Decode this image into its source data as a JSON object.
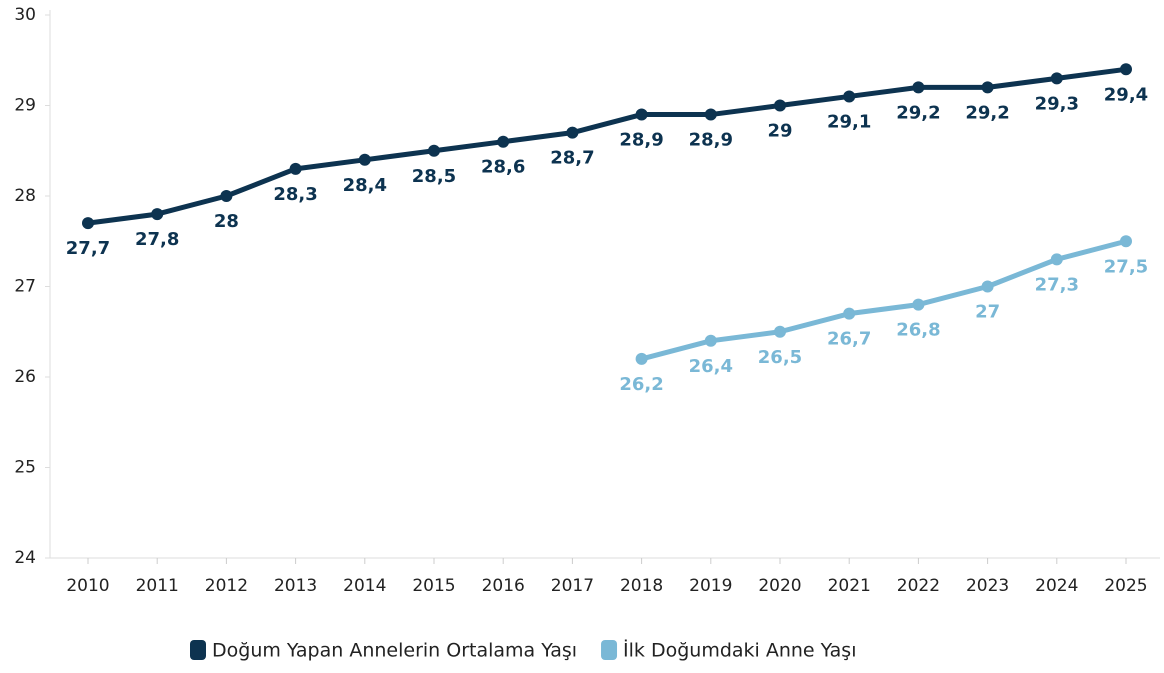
{
  "chart_data": {
    "type": "line",
    "categories": [
      "2010",
      "2011",
      "2012",
      "2013",
      "2014",
      "2015",
      "2016",
      "2017",
      "2018",
      "2019",
      "2020",
      "2021",
      "2022",
      "2023",
      "2024",
      "2025"
    ],
    "series": [
      {
        "name": "Doğum Yapan Annelerin Ortalama Yaşı",
        "color": "#0d3350",
        "values": [
          27.7,
          27.8,
          28,
          28.3,
          28.4,
          28.5,
          28.6,
          28.7,
          28.9,
          28.9,
          29,
          29.1,
          29.2,
          29.2,
          29.3,
          29.4
        ],
        "value_labels": [
          "27,7",
          "27,8",
          "28",
          "28,3",
          "28,4",
          "28,5",
          "28,6",
          "28,7",
          "28,9",
          "28,9",
          "29",
          "29,1",
          "29,2",
          "29,2",
          "29,3",
          "29,4"
        ]
      },
      {
        "name": "İlk Doğumdaki Anne Yaşı",
        "color": "#7ab8d6",
        "values": [
          null,
          null,
          null,
          null,
          null,
          null,
          null,
          null,
          26.2,
          26.4,
          26.5,
          26.7,
          26.8,
          27,
          27.3,
          27.5
        ],
        "value_labels": [
          null,
          null,
          null,
          null,
          null,
          null,
          null,
          null,
          "26,2",
          "26,4",
          "26,5",
          "26,7",
          "26,8",
          "27",
          "27,3",
          "27,5"
        ]
      }
    ],
    "ylim": [
      24,
      30
    ],
    "yticks": [
      24,
      25,
      26,
      27,
      28,
      29,
      30
    ],
    "grid": false,
    "legend": "bottom"
  }
}
